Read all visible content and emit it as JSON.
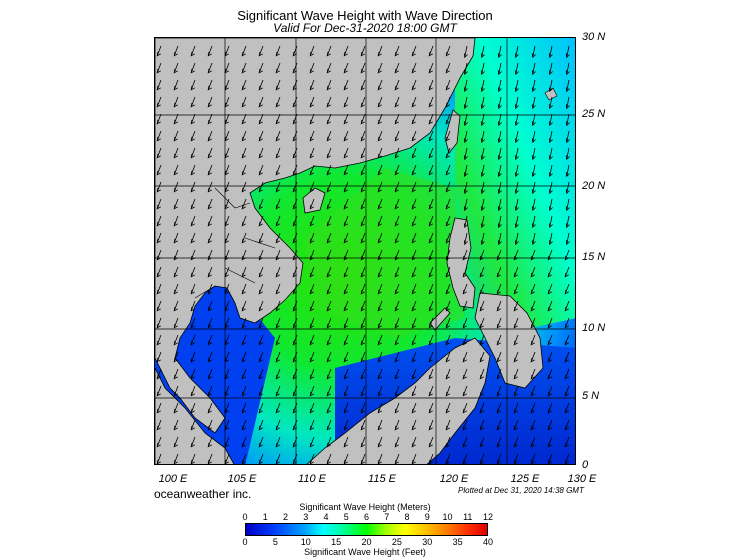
{
  "title": "Significant Wave Height with Wave Direction",
  "subtitle": "Valid For Dec-31-2020 18:00 GMT",
  "lat_labels": [
    "30 N",
    "25 N",
    "20 N",
    "15 N",
    "10 N",
    "5 N",
    "0"
  ],
  "lon_labels": [
    "100 E",
    "105 E",
    "110 E",
    "115 E",
    "120 E",
    "125 E",
    "130 E"
  ],
  "credit": "oceanweather inc.",
  "plotted": "Plotted at Dec 31, 2020 14:38 GMT",
  "colorbar": {
    "meters_title": "Significant Wave Height (Meters)",
    "meters_ticks": [
      "0",
      "1",
      "2",
      "3",
      "4",
      "5",
      "6",
      "7",
      "8",
      "9",
      "10",
      "11",
      "12"
    ],
    "feet_title": "Significant Wave Height (Feet)",
    "feet_ticks": [
      "0",
      "5",
      "10",
      "15",
      "20",
      "25",
      "30",
      "35",
      "40"
    ]
  },
  "colors": {
    "land": "#c0c0c0",
    "deep_blue": "#0030e0",
    "cyan": "#00e0ff",
    "green": "#20e020"
  }
}
